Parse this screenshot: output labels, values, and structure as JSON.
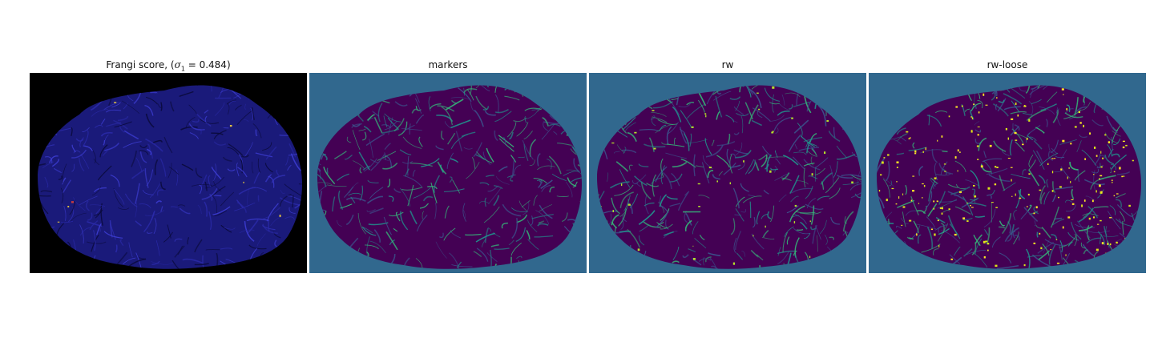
{
  "figure": {
    "panels": [
      {
        "id": "frangi",
        "title_prefix": "Frangi score, (",
        "title_sigma": "σ",
        "title_sub": "1",
        "title_value": " = 0.484)",
        "background": "#000000",
        "blob_fill": "#1a1a7a",
        "texture_colors": [
          "#0a0a3a",
          "#2a2aa8",
          "#3c3cd0"
        ],
        "sparkle_colors": [
          "#c83c3c",
          "#e0c040"
        ]
      },
      {
        "id": "markers",
        "title": "markers",
        "background": "#31688e",
        "blob_fill": "#440154",
        "texture_colors": [
          "#3b528b",
          "#21918c",
          "#35b779"
        ],
        "sparkle_colors": []
      },
      {
        "id": "rw",
        "title": "rw",
        "background": "#31688e",
        "blob_fill": "#440154",
        "texture_colors": [
          "#3b528b",
          "#21918c",
          "#35b779"
        ],
        "sparkle_colors": [
          "#b5de2b"
        ]
      },
      {
        "id": "rw-loose",
        "title": "rw-loose",
        "background": "#31688e",
        "blob_fill": "#440154",
        "texture_colors": [
          "#3b528b",
          "#21918c",
          "#35b779"
        ],
        "sparkle_colors": [
          "#fde725",
          "#dce319"
        ]
      }
    ]
  }
}
